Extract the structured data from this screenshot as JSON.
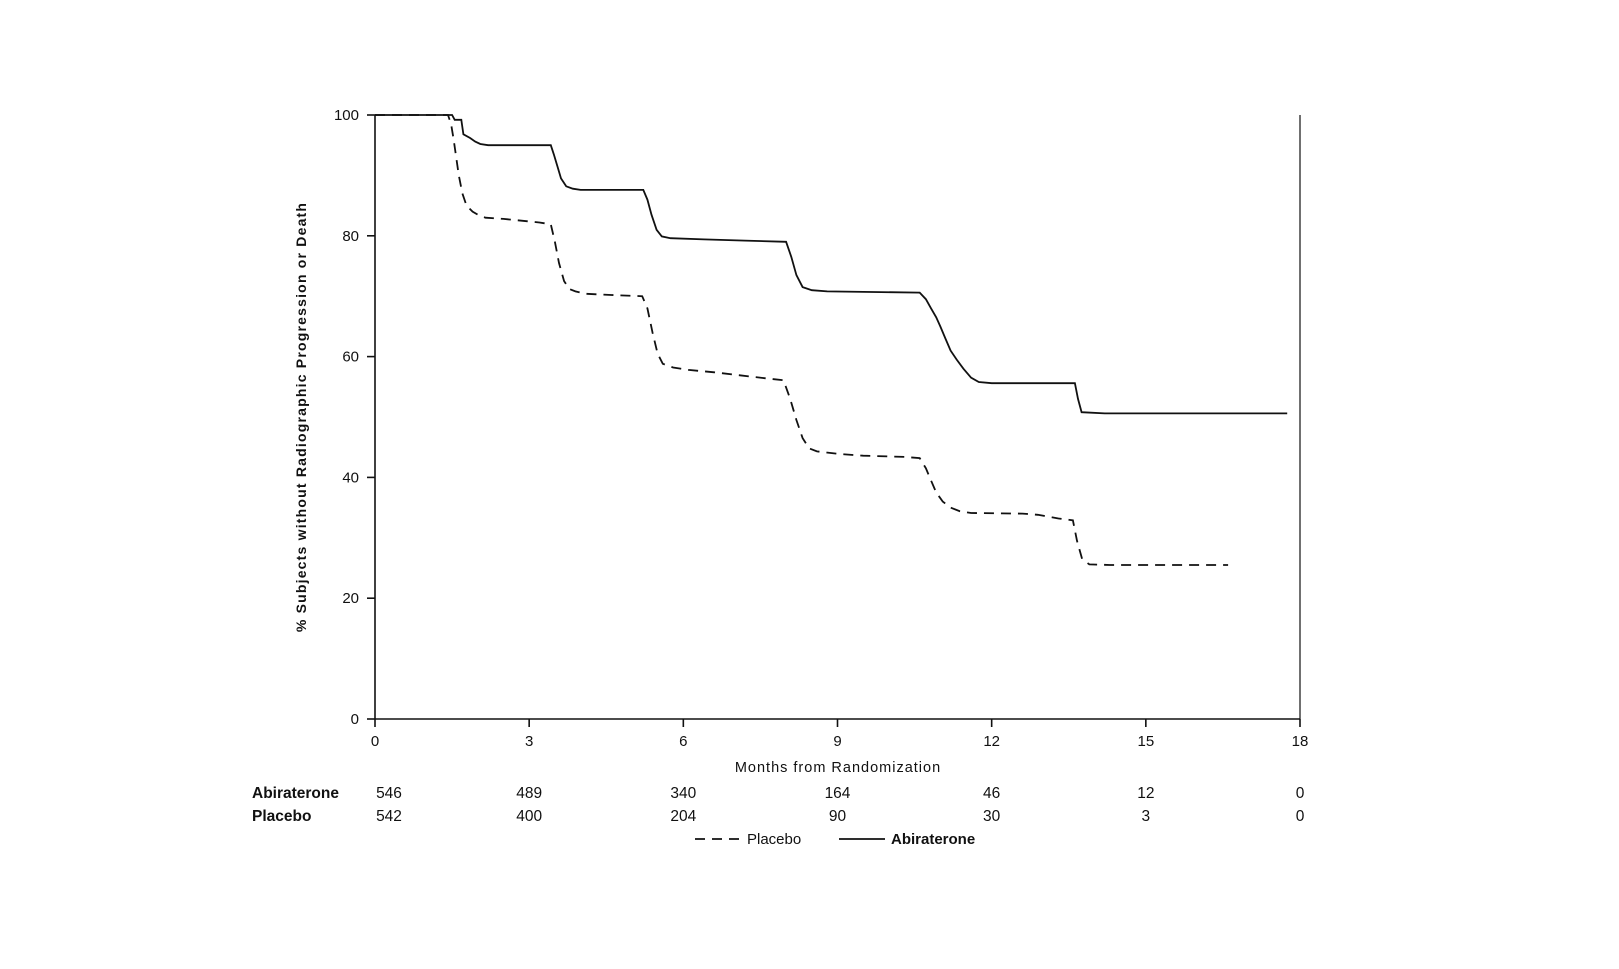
{
  "page": {
    "background": "#ffffff",
    "ink": "#111111"
  },
  "chart_data": {
    "type": "line",
    "subtype": "kaplan-meier-step",
    "title": "",
    "xlabel": "Months from Randomization",
    "ylabel": "% Subjects without Radiographic Progression or Death",
    "xlim": [
      0,
      18
    ],
    "ylim": [
      0,
      100
    ],
    "xticks": [
      0,
      3,
      6,
      9,
      12,
      15,
      18
    ],
    "yticks": [
      0,
      20,
      40,
      60,
      80,
      100
    ],
    "grid": false,
    "legend_position": "bottom-center",
    "series": [
      {
        "name": "Placebo",
        "style": "dashed",
        "color": "#111111",
        "points": [
          [
            0,
            100
          ],
          [
            1.42,
            100
          ],
          [
            1.48,
            98.5
          ],
          [
            1.53,
            96
          ],
          [
            1.58,
            93
          ],
          [
            1.63,
            90
          ],
          [
            1.7,
            87
          ],
          [
            1.78,
            85
          ],
          [
            1.9,
            84
          ],
          [
            2.02,
            83.4
          ],
          [
            2.15,
            83
          ],
          [
            2.5,
            82.8
          ],
          [
            3.2,
            82.2
          ],
          [
            3.42,
            81.9
          ],
          [
            3.5,
            79
          ],
          [
            3.58,
            75.5
          ],
          [
            3.68,
            72.5
          ],
          [
            3.78,
            71.2
          ],
          [
            3.9,
            70.8
          ],
          [
            4.1,
            70.4
          ],
          [
            4.6,
            70.2
          ],
          [
            5.2,
            70
          ],
          [
            5.3,
            68
          ],
          [
            5.4,
            64
          ],
          [
            5.5,
            60.5
          ],
          [
            5.6,
            58.8
          ],
          [
            5.8,
            58.2
          ],
          [
            6.1,
            57.8
          ],
          [
            6.6,
            57.4
          ],
          [
            7.1,
            56.9
          ],
          [
            7.6,
            56.4
          ],
          [
            7.95,
            56.1
          ],
          [
            8.08,
            53
          ],
          [
            8.2,
            49.5
          ],
          [
            8.32,
            46.5
          ],
          [
            8.45,
            44.8
          ],
          [
            8.6,
            44.3
          ],
          [
            9.0,
            43.9
          ],
          [
            9.5,
            43.6
          ],
          [
            10.3,
            43.4
          ],
          [
            10.6,
            43.2
          ],
          [
            10.72,
            41.5
          ],
          [
            10.82,
            39.5
          ],
          [
            10.92,
            37.5
          ],
          [
            11.05,
            36
          ],
          [
            11.2,
            35
          ],
          [
            11.38,
            34.4
          ],
          [
            11.6,
            34.1
          ],
          [
            12.6,
            34
          ],
          [
            12.9,
            33.8
          ],
          [
            13.3,
            33.2
          ],
          [
            13.58,
            32.9
          ],
          [
            13.66,
            29.5
          ],
          [
            13.76,
            26.5
          ],
          [
            13.9,
            25.6
          ],
          [
            14.3,
            25.5
          ],
          [
            16.6,
            25.5
          ]
        ]
      },
      {
        "name": "Abiraterone",
        "style": "solid",
        "color": "#111111",
        "points": [
          [
            0,
            100
          ],
          [
            1.5,
            100
          ],
          [
            1.55,
            99.2
          ],
          [
            1.68,
            99.2
          ],
          [
            1.72,
            96.8
          ],
          [
            1.85,
            96.2
          ],
          [
            1.95,
            95.6
          ],
          [
            2.05,
            95.2
          ],
          [
            2.2,
            95
          ],
          [
            3.42,
            95
          ],
          [
            3.48,
            93.5
          ],
          [
            3.55,
            91.5
          ],
          [
            3.62,
            89.5
          ],
          [
            3.72,
            88.2
          ],
          [
            3.85,
            87.8
          ],
          [
            4.0,
            87.6
          ],
          [
            5.22,
            87.6
          ],
          [
            5.3,
            86
          ],
          [
            5.38,
            83.5
          ],
          [
            5.48,
            81
          ],
          [
            5.58,
            79.9
          ],
          [
            5.75,
            79.6
          ],
          [
            6.4,
            79.4
          ],
          [
            7.2,
            79.2
          ],
          [
            8.0,
            79
          ],
          [
            8.1,
            76.5
          ],
          [
            8.2,
            73.5
          ],
          [
            8.32,
            71.5
          ],
          [
            8.5,
            71
          ],
          [
            8.8,
            70.8
          ],
          [
            10.6,
            70.6
          ],
          [
            10.72,
            69.5
          ],
          [
            10.82,
            68
          ],
          [
            10.92,
            66.5
          ],
          [
            11.0,
            65
          ],
          [
            11.1,
            63
          ],
          [
            11.2,
            61
          ],
          [
            11.32,
            59.5
          ],
          [
            11.45,
            58
          ],
          [
            11.6,
            56.5
          ],
          [
            11.75,
            55.8
          ],
          [
            12.0,
            55.6
          ],
          [
            13.62,
            55.6
          ],
          [
            13.68,
            53
          ],
          [
            13.75,
            50.8
          ],
          [
            14.2,
            50.6
          ],
          [
            17.75,
            50.6
          ]
        ]
      }
    ],
    "risk_table": {
      "x_positions": [
        0,
        3,
        6,
        9,
        12,
        15,
        18
      ],
      "rows": [
        {
          "label": "Abiraterone",
          "values": [
            546,
            489,
            340,
            164,
            46,
            12,
            0
          ]
        },
        {
          "label": "Placebo",
          "values": [
            542,
            400,
            204,
            90,
            30,
            3,
            0
          ]
        }
      ]
    },
    "legend": [
      {
        "label": "Placebo",
        "style": "dashed"
      },
      {
        "label": "Abiraterone",
        "style": "solid"
      }
    ]
  }
}
